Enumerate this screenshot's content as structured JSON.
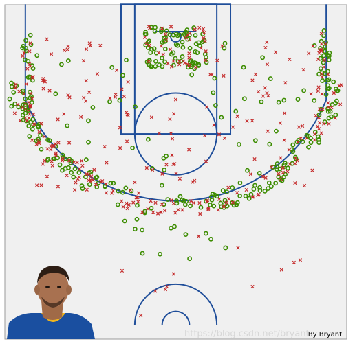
{
  "chart_data": {
    "type": "scatter",
    "title": "",
    "xlabel": "",
    "ylabel": "",
    "xlim": [
      -250,
      250
    ],
    "ylim": [
      -47.5,
      422.5
    ],
    "axes_visible": false,
    "grid": false,
    "legend": "none",
    "background_color": "#f0f0f0",
    "court_line_color": "#1f4e9a",
    "series": [
      {
        "made": true,
        "color": "#3c8c00",
        "marker": "circle-open"
      },
      {
        "made": false,
        "color": "#c42a2a",
        "marker": "x"
      }
    ],
    "clusters": [
      {
        "made": true,
        "count": 150,
        "shape": "arc",
        "r_min": 233,
        "r_max": 262,
        "angle_min": 15,
        "angle_max": 165
      },
      {
        "made": false,
        "count": 130,
        "shape": "arc",
        "r_min": 233,
        "r_max": 262,
        "angle_min": 15,
        "angle_max": 165
      },
      {
        "made": true,
        "count": 30,
        "shape": "box",
        "x_min": -225,
        "x_max": -208,
        "y_min": -10,
        "y_max": 130
      },
      {
        "made": false,
        "count": 18,
        "shape": "box",
        "x_min": -225,
        "x_max": -208,
        "y_min": -10,
        "y_max": 130
      },
      {
        "made": true,
        "count": 30,
        "shape": "box",
        "x_min": 208,
        "x_max": 225,
        "y_min": -10,
        "y_max": 130
      },
      {
        "made": false,
        "count": 20,
        "shape": "box",
        "x_min": 208,
        "x_max": 225,
        "y_min": -10,
        "y_max": 130
      },
      {
        "made": true,
        "count": 80,
        "shape": "box",
        "x_min": -45,
        "x_max": 45,
        "y_min": -15,
        "y_max": 45
      },
      {
        "made": false,
        "count": 35,
        "shape": "box",
        "x_min": -45,
        "x_max": 45,
        "y_min": -15,
        "y_max": 45
      },
      {
        "made": true,
        "count": 60,
        "shape": "box",
        "x_min": -205,
        "x_max": 205,
        "y_min": 0,
        "y_max": 225
      },
      {
        "made": false,
        "count": 130,
        "shape": "box",
        "x_min": -205,
        "x_max": 205,
        "y_min": 0,
        "y_max": 225
      },
      {
        "made": true,
        "count": 14,
        "shape": "box",
        "x_min": -120,
        "x_max": 120,
        "y_min": 265,
        "y_max": 340
      },
      {
        "made": false,
        "count": 16,
        "shape": "box",
        "x_min": -160,
        "x_max": 220,
        "y_min": 265,
        "y_max": 410
      }
    ]
  },
  "photo": {
    "subject": "player-headshot",
    "jersey_color": "#1a4fa0",
    "trim_color": "#f2b61c"
  },
  "credit_text": "By Bryant",
  "watermark_text": "https://blog.csdn.net/bryant"
}
